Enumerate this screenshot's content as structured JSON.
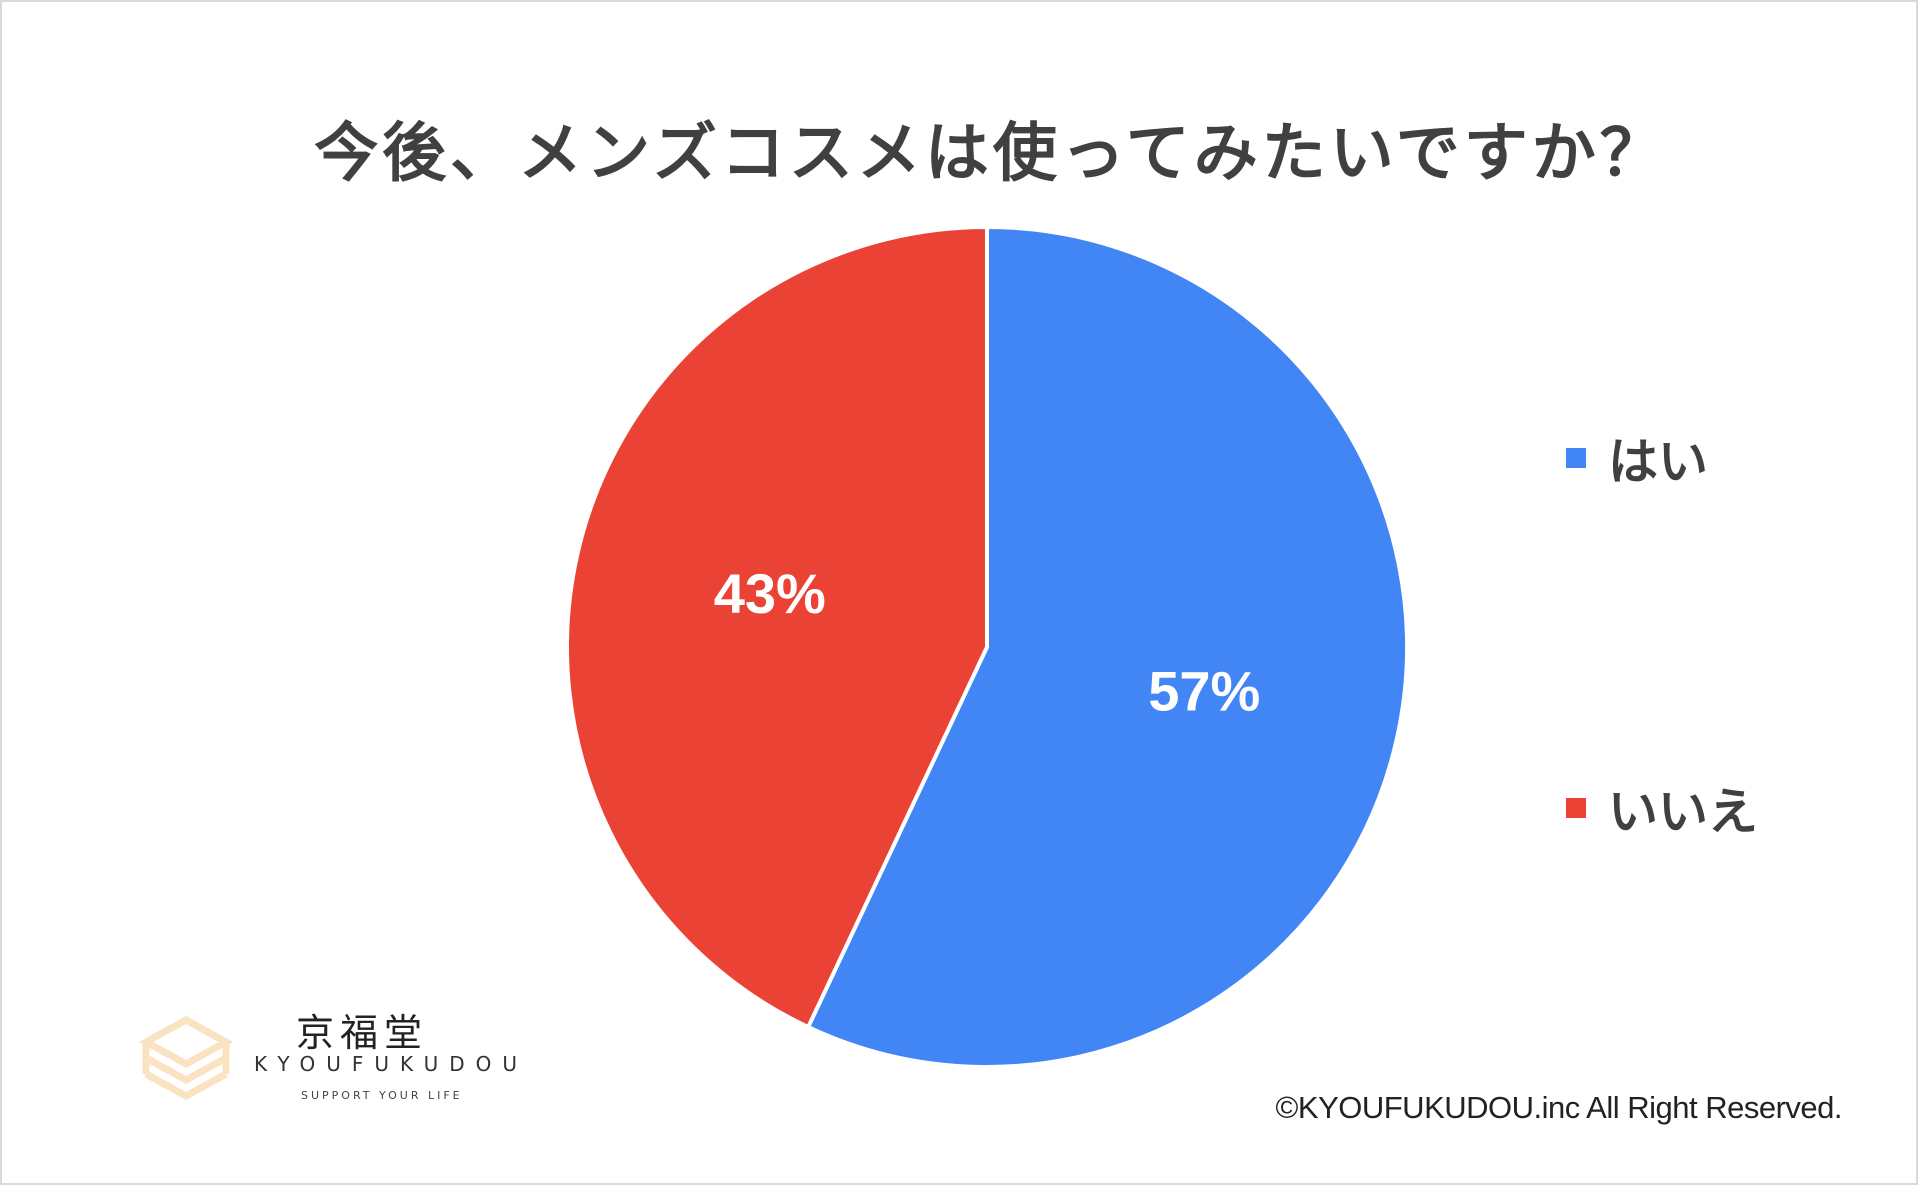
{
  "chart_data": {
    "type": "pie",
    "title": "今後、メンズコスメは使ってみたいですか？",
    "categories": [
      "はい",
      "いいえ"
    ],
    "values": [
      57,
      43
    ],
    "labels": [
      "57%",
      "43%"
    ],
    "colors": [
      "#4285f4",
      "#ea4335"
    ],
    "start_angle_deg": 0,
    "direction": "clockwise",
    "legend_position": "right",
    "slice_border_color": "#ffffff"
  },
  "logo": {
    "kanji": "京福堂",
    "roman": "KYOUFUKUDOU",
    "tagline": "SUPPORT YOUR LIFE",
    "mark_color": "#f9e3c0"
  },
  "copyright": "©KYOUFUKUDOU.inc All Right Reserved."
}
